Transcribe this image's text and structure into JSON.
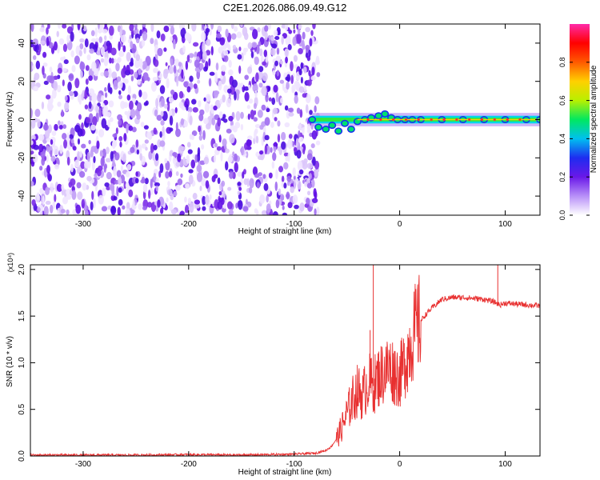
{
  "title": "C2E1.2026.086.09.49.G12",
  "chart_data": [
    {
      "type": "heatmap",
      "title": "C2E1.2026.086.09.49.G12",
      "xlabel": "Height of straight line (km)",
      "ylabel": "Frequency (Hz)",
      "xlim": [
        -350,
        133
      ],
      "ylim": [
        -50,
        50
      ],
      "xticks": [
        -300,
        -200,
        -100,
        0,
        100
      ],
      "yticks": [
        -40,
        -20,
        0,
        20,
        40
      ],
      "noise_region_x": [
        -350,
        -77
      ],
      "signal_track": {
        "x": [
          -83,
          -77,
          -70,
          -64,
          -58,
          -52,
          -46,
          -40,
          -33,
          -27,
          -20,
          -14,
          -8,
          -2,
          5,
          12,
          20,
          40,
          60,
          80,
          100,
          120,
          133
        ],
        "frequency": [
          0,
          -4,
          -5,
          -3,
          -6,
          -2,
          -5,
          -1,
          0,
          1,
          2,
          3,
          1,
          0,
          0,
          0,
          0,
          0,
          0,
          0,
          0,
          0,
          0
        ]
      },
      "colorbar": {
        "label": "Normalized spectral amplitude",
        "ticks": [
          "0.0",
          "0.2",
          "0.4",
          "0.6",
          "0.8"
        ],
        "range": [
          0,
          1
        ],
        "colormap": [
          "#ffffff",
          "#b890f8",
          "#6a18e8",
          "#1e2cf0",
          "#00c0f0",
          "#00e860",
          "#b8f000",
          "#ffd000",
          "#ff5a00",
          "#ff0000",
          "#ff2aa8"
        ]
      }
    },
    {
      "type": "line",
      "xlabel": "Height of straight line (km)",
      "ylabel": "SNR (10 * v/v)",
      "exponent_label": "(x10⁴)",
      "xlim": [
        -350,
        133
      ],
      "ylim": [
        0,
        2.05
      ],
      "xticks": [
        -300,
        -200,
        -100,
        0,
        100
      ],
      "yticks": [
        "0.0",
        "0.5",
        "1.0",
        "1.5",
        "2.0"
      ],
      "series": [
        {
          "name": "SNR",
          "color": "#e83030",
          "x": [
            -350,
            -300,
            -250,
            -200,
            -150,
            -100,
            -80,
            -70,
            -65,
            -60,
            -55,
            -50,
            -45,
            -40,
            -35,
            -30,
            -25,
            -20,
            -15,
            -10,
            -5,
            0,
            5,
            10,
            15,
            20,
            25,
            30,
            35,
            40,
            50,
            60,
            70,
            80,
            90,
            95,
            100,
            110,
            120,
            133
          ],
          "y": [
            0.01,
            0.01,
            0.01,
            0.015,
            0.01,
            0.02,
            0.03,
            0.06,
            0.1,
            0.18,
            0.3,
            0.45,
            0.6,
            0.7,
            0.65,
            0.8,
            0.75,
            0.85,
            0.9,
            0.95,
            0.9,
            0.85,
            1.0,
            1.2,
            1.35,
            1.45,
            1.52,
            1.58,
            1.63,
            1.68,
            1.7,
            1.7,
            1.69,
            1.68,
            1.65,
            1.62,
            1.64,
            1.63,
            1.62,
            1.61
          ]
        }
      ],
      "spikes": [
        {
          "x": -25,
          "y": 2.05
        },
        {
          "x": -28,
          "y": 1.35
        },
        {
          "x": 93,
          "y": 2.05
        }
      ]
    }
  ]
}
